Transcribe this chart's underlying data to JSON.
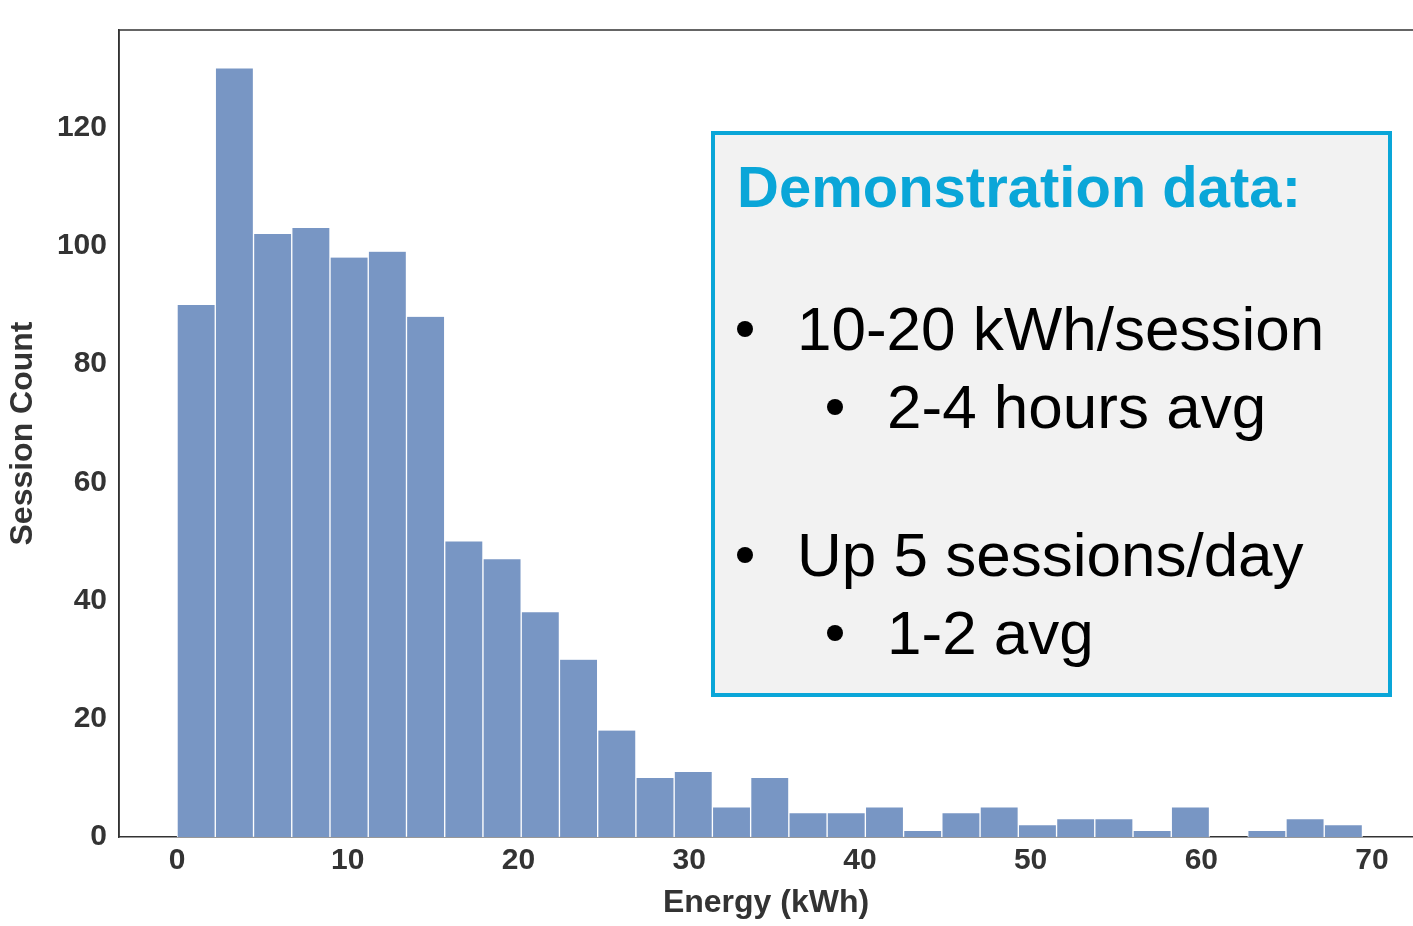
{
  "chart_data": {
    "type": "histogram",
    "xlabel": "Energy (kWh)",
    "ylabel": "Session Count",
    "bins": [
      0,
      2.24,
      4.48,
      6.72,
      8.96,
      11.2,
      13.44,
      15.68,
      17.92,
      20.16,
      22.4,
      24.64,
      26.88,
      29.12,
      31.36,
      33.6,
      35.84,
      38.08,
      40.32,
      42.56,
      44.8,
      47.04,
      49.28,
      51.52,
      53.76,
      56,
      58.24,
      60.48,
      62.72,
      64.96,
      67.2,
      69.44
    ],
    "values": [
      90,
      130,
      102,
      103,
      98,
      99,
      88,
      50,
      47,
      38,
      30,
      18,
      10,
      11,
      5,
      10,
      4,
      4,
      5,
      1,
      4,
      5,
      2,
      3,
      3,
      1,
      5,
      0,
      1,
      3,
      2
    ],
    "color": "#7896c4",
    "xlim": [
      -3.4,
      72.4
    ],
    "xticks": [
      0,
      10,
      20,
      30,
      40,
      50,
      60,
      70
    ],
    "ylim": [
      0,
      136.5
    ],
    "yticks": [
      0,
      20,
      40,
      60,
      80,
      100,
      120
    ],
    "grid": false,
    "annotations": [
      "Demonstration data:",
      "10-20 kWh/session",
      "2-4 hours avg",
      "Up 5 sessions/day",
      "1-2 avg"
    ]
  }
}
